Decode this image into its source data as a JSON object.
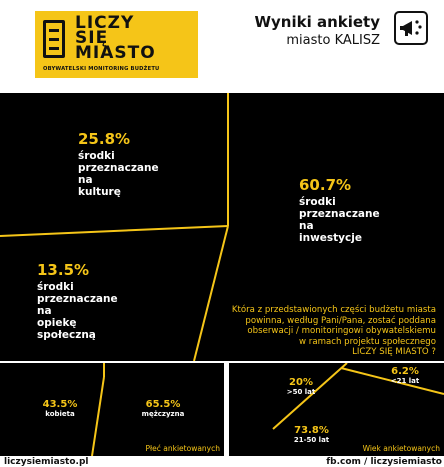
{
  "logo": {
    "line1": "LICZY",
    "line2": "SIĘ",
    "line3": "MIASTO",
    "tagline": "OBYWATELSKI MONITORING BUDŻETU"
  },
  "header": {
    "title": "Wyniki ankiety",
    "subtitle": "miasto KALISZ",
    "icon": "megaphone-icon"
  },
  "budget": {
    "culture": {
      "pct": "25.8%",
      "line1": "środki",
      "line2": "przeznaczane",
      "line3": "na",
      "line4": "kulturę",
      "value": 25.8
    },
    "investment": {
      "pct": "60.7%",
      "line1": "środki",
      "line2": "przeznaczane",
      "line3": "na",
      "line4": "inwestycje",
      "value": 60.7
    },
    "care": {
      "pct": "13.5%",
      "line1": "środki",
      "line2": "przeznaczane",
      "line3": "na",
      "line4": "opiekę",
      "line5": "społeczną",
      "value": 13.5
    },
    "question": {
      "line1": "Która z przedstawionych części budżetu miasta",
      "line2": "powinna, według Pani/Pana, zostać poddana",
      "line3": "obserwacji / monitoringowi obywatelskiemu",
      "line4": "w ramach projektu społecznego",
      "line5": "LICZY SIĘ MIASTO ?"
    }
  },
  "gender": {
    "female": {
      "pct": "43.5%",
      "label": "kobieta",
      "value": 43.5
    },
    "male": {
      "pct": "65.5%",
      "label": "mężczyzna",
      "value": 65.5
    },
    "caption": "Płeć ankietowanych"
  },
  "age": {
    "over50": {
      "pct": "20%",
      "label": ">50 lat",
      "value": 20
    },
    "under21": {
      "pct": "6.2%",
      "label": "<21 lat",
      "value": 6.2
    },
    "mid": {
      "pct": "73.8%",
      "label": "21-50 lat",
      "value": 73.8
    },
    "caption": "Wiek ankietowanych"
  },
  "footer": {
    "left": "liczysiemiasto.pl",
    "right": "fb.com / liczysiemiasto"
  },
  "colors": {
    "accent": "#f5c518",
    "panel": "#000000",
    "text": "#111111"
  }
}
